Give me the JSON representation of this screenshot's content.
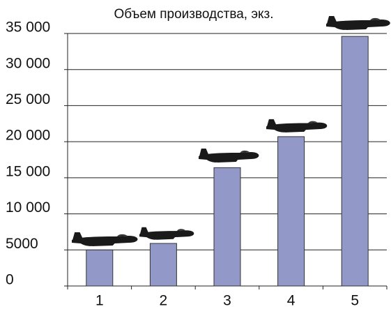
{
  "chart_data": {
    "type": "bar",
    "title": "Объем производства, экз.",
    "categories": [
      "1",
      "2",
      "3",
      "4",
      "5"
    ],
    "values": [
      5000,
      5900,
      16400,
      20700,
      34600
    ],
    "color": "#9299c9",
    "ylim": [
      0,
      35000
    ],
    "yticks": [
      0,
      5000,
      {
        "value": 10000,
        "label": "10 000"
      },
      {
        "value": 15000,
        "label": "15 000"
      },
      {
        "value": 20000,
        "label": "20 000"
      },
      {
        "value": 25000,
        "label": "25 000"
      },
      {
        "value": 30000,
        "label": "30 000"
      },
      {
        "value": 35000,
        "label": "35 000"
      }
    ],
    "grid": true
  }
}
